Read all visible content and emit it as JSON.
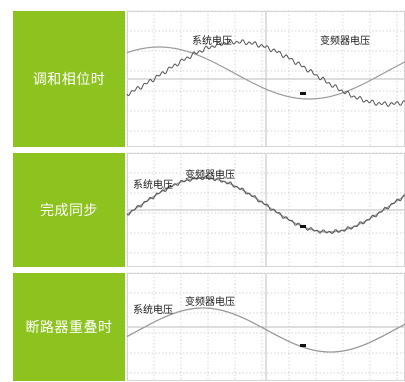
{
  "panels": [
    {
      "title": "调和相位时",
      "system_label": "系统电压",
      "vfd_label": "变频器电压"
    },
    {
      "title": "完成同步",
      "system_label": "系统电压",
      "vfd_label": "变频器电压"
    },
    {
      "title": "断路器重叠时",
      "system_label": "系统电压",
      "vfd_label": "变频器电压"
    }
  ],
  "colors": {
    "accent": "#8cc31e",
    "grid": "#c8c8c8",
    "trace_system": "#9a9a9a",
    "trace_vfd": "#555555",
    "marker": "#111111"
  }
}
